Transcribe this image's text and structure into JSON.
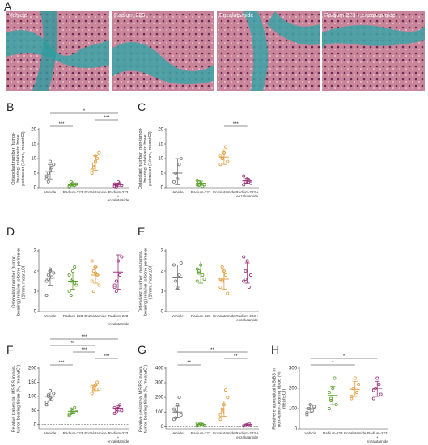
{
  "panel_a": {
    "letter": "A",
    "images": [
      "Vehicle",
      "Radium-223",
      "Enzalutamide",
      "Radium-223 + enzalutamide"
    ]
  },
  "chart_data": [
    {
      "type": "dot",
      "letter": "B",
      "ylabel": "Osteoclast number (tumor-bearing) relative to bone perimeter (1/mm, mean±CI)",
      "categories": [
        "Vehicle",
        "Radium-223",
        "Enzalutamide",
        "Radium-223 + enzalutamide"
      ],
      "colors": [
        "#777777",
        "#5aa02c",
        "#e39b3a",
        "#9b2f7a"
      ],
      "points": [
        [
          3,
          5,
          6,
          7,
          8,
          4,
          2,
          9
        ],
        [
          0.5,
          1,
          1.5,
          0.8,
          1.2,
          0.3,
          2,
          1
        ],
        [
          5,
          7,
          9,
          10,
          12,
          6,
          8,
          11
        ],
        [
          0.5,
          1,
          2,
          1.5,
          0.8,
          1.2,
          0.3
        ]
      ],
      "means": [
        5.5,
        1,
        8.5,
        1
      ],
      "ci_low": [
        3,
        0.5,
        6,
        0.5
      ],
      "ci_high": [
        8,
        1.5,
        11,
        1.5
      ],
      "ylim": [
        0,
        20
      ],
      "yticks": [
        0,
        5,
        10,
        15,
        20
      ],
      "significance": [
        {
          "from": 0,
          "to": 1,
          "label": "***"
        },
        {
          "from": 2,
          "to": 3,
          "label": "***"
        },
        {
          "from": 0,
          "to": 3,
          "label": "*"
        }
      ]
    },
    {
      "type": "dot",
      "letter": "C",
      "ylabel": "Osteoclast number (non-tumor-bearing) relative to bone perimeter (1/mm, mean±CI)",
      "categories": [
        "Vehicle",
        "Radium-223",
        "Enzalutamide",
        "Radium-223 + enzalutamide"
      ],
      "colors": [
        "#777777",
        "#5aa02c",
        "#e39b3a",
        "#9b2f7a"
      ],
      "points": [
        [
          2,
          5,
          3,
          8,
          10
        ],
        [
          1,
          2,
          1.5,
          0.5,
          1,
          2.5,
          0.8
        ],
        [
          8,
          10,
          12,
          14,
          9,
          11,
          10
        ],
        [
          1,
          2,
          3,
          2.5,
          1.5,
          4,
          2
        ]
      ],
      "means": [
        5,
        1.5,
        10.5,
        2.3
      ],
      "ci_low": [
        1,
        0.8,
        8,
        1.5
      ],
      "ci_high": [
        10,
        2.2,
        13,
        3.2
      ],
      "ylim": [
        0,
        20
      ],
      "yticks": [
        0,
        5,
        10,
        15,
        20
      ],
      "significance": [
        {
          "from": 2,
          "to": 3,
          "label": "***"
        }
      ]
    },
    {
      "type": "dot",
      "letter": "D",
      "ylabel": "Osteoclast number (tumor-bearing) relative to bone perimeter (1/mm, mean±CI)",
      "categories": [
        "Vehicle",
        "Radium-223",
        "Enzalutamide",
        "Radium-223 + enzalutamide"
      ],
      "colors": [
        "#777777",
        "#5aa02c",
        "#e39b3a",
        "#9b2f7a"
      ],
      "points": [
        [
          1.5,
          1.8,
          2,
          1.7,
          1.9,
          0.8,
          1.6,
          2.1
        ],
        [
          1,
          1.5,
          2,
          2.2,
          1.3,
          1.8,
          0.8,
          1.6,
          1.4
        ],
        [
          1.5,
          2,
          2.2,
          1.8,
          1.3,
          2.5,
          1,
          1.9
        ],
        [
          1.2,
          1.5,
          2.5,
          1.8,
          2.7,
          1.3,
          1
        ]
      ],
      "means": [
        1.65,
        1.5,
        1.8,
        1.95
      ],
      "ci_low": [
        1.3,
        1.1,
        1.4,
        1.1
      ],
      "ci_high": [
        2,
        1.9,
        2.2,
        2.8
      ],
      "ylim": [
        0,
        3
      ],
      "yticks": [
        0,
        1,
        2,
        3
      ],
      "significance": []
    },
    {
      "type": "dot",
      "letter": "E",
      "ylabel": "Osteoclast number (non-tumor-bearing) relative to bone perimeter (1/mm, mean±CI)",
      "categories": [
        "Vehicle",
        "Radium-223",
        "Enzalutamide",
        "Radium-223 + enzalutamide"
      ],
      "colors": [
        "#777777",
        "#5aa02c",
        "#e39b3a",
        "#9b2f7a"
      ],
      "points": [
        [
          2.3,
          1.5,
          1.2,
          1.8,
          2.4
        ],
        [
          1.5,
          2,
          2.3,
          1.8,
          1.6,
          2.1,
          1.9
        ],
        [
          1.2,
          1.5,
          2,
          1.8,
          0.9,
          1.6,
          2.2
        ],
        [
          1.5,
          2,
          2.5,
          1.2,
          1.8,
          2.7,
          1.6
        ]
      ],
      "means": [
        1.7,
        1.9,
        1.6,
        1.9
      ],
      "ci_low": [
        1.1,
        1.4,
        1.1,
        1.4
      ],
      "ci_high": [
        2.3,
        2.5,
        2.1,
        2.4
      ],
      "ylim": [
        0,
        3
      ],
      "yticks": [
        0,
        1,
        2,
        3
      ],
      "significance": []
    },
    {
      "type": "dot",
      "letter": "F",
      "ylabel": "Relative trabecular MS/BS in non-tumor-bearing tibiae (%, mean±CI)",
      "categories": [
        "Vehicle",
        "Radium-223",
        "Enzalutamide",
        "Radium-223 + enzalutamide"
      ],
      "colors": [
        "#777777",
        "#5aa02c",
        "#e39b3a",
        "#9b2f7a"
      ],
      "points": [
        [
          80,
          100,
          120,
          90,
          110,
          70,
          105,
          95
        ],
        [
          30,
          40,
          50,
          60,
          45,
          35,
          55
        ],
        [
          110,
          130,
          140,
          150,
          125,
          135,
          120
        ],
        [
          40,
          55,
          65,
          70,
          50,
          60,
          45
        ]
      ],
      "means": [
        100,
        47,
        130,
        58
      ],
      "ci_low": [
        85,
        38,
        120,
        48
      ],
      "ci_high": [
        115,
        56,
        140,
        68
      ],
      "ylim": [
        -15,
        200
      ],
      "yticks": [
        0,
        50,
        100,
        150,
        200
      ],
      "reference_line": 0,
      "significance": [
        {
          "from": 0,
          "to": 1,
          "label": "***"
        },
        {
          "from": 2,
          "to": 3,
          "label": "***"
        },
        {
          "from": 1,
          "to": 2,
          "label": "***"
        },
        {
          "from": 0,
          "to": 2,
          "label": "**"
        },
        {
          "from": 0,
          "to": 3,
          "label": "***"
        }
      ]
    },
    {
      "type": "dot",
      "letter": "G",
      "ylabel": "Relative periosteal MS/BS in non-tumor-bearing tibiae (%, mean±CI)",
      "categories": [
        "Vehicle",
        "Radium-223",
        "Enzalutamide",
        "Radium-223 + enzalutamide"
      ],
      "colors": [
        "#777777",
        "#5aa02c",
        "#e39b3a",
        "#9b2f7a"
      ],
      "points": [
        [
          50,
          100,
          150,
          200,
          80,
          120,
          60
        ],
        [
          5,
          10,
          20,
          15,
          8,
          25
        ],
        [
          50,
          100,
          150,
          250,
          200,
          80,
          120
        ],
        [
          5,
          10,
          15,
          20,
          8
        ]
      ],
      "means": [
        100,
        13,
        120,
        12
      ],
      "ci_low": [
        60,
        5,
        70,
        5
      ],
      "ci_high": [
        140,
        20,
        175,
        18
      ],
      "ylim": [
        -15,
        400
      ],
      "yticks": [
        0,
        100,
        200,
        300,
        400
      ],
      "reference_line": 0,
      "significance": [
        {
          "from": 0,
          "to": 1,
          "label": "**"
        },
        {
          "from": 2,
          "to": 3,
          "label": "**"
        },
        {
          "from": 0,
          "to": 3,
          "label": "**"
        }
      ]
    },
    {
      "type": "dot",
      "letter": "H",
      "ylabel": "Relative endocortical MS/BS in non-tumor-bearing tibiae (%, mean±CI)",
      "categories": [
        "Vehicle",
        "Radium-223",
        "Enzalutamide",
        "Radium-223 + enzalutamide"
      ],
      "colors": [
        "#777777",
        "#5aa02c",
        "#e39b3a",
        "#9b2f7a"
      ],
      "points": [
        [
          80,
          100,
          120,
          90,
          110,
          70
        ],
        [
          100,
          150,
          200,
          250,
          120,
          180,
          140
        ],
        [
          150,
          200,
          250,
          180,
          220,
          160
        ],
        [
          150,
          200,
          250,
          220,
          170,
          190
        ]
      ],
      "means": [
        100,
        165,
        195,
        200
      ],
      "ci_low": [
        80,
        120,
        160,
        160
      ],
      "ci_high": [
        120,
        210,
        235,
        235
      ],
      "ylim": [
        0,
        300
      ],
      "yticks": [
        0,
        100,
        200,
        300
      ],
      "significance": [
        {
          "from": 0,
          "to": 2,
          "label": "*"
        },
        {
          "from": 0,
          "to": 3,
          "label": "*"
        }
      ]
    }
  ]
}
